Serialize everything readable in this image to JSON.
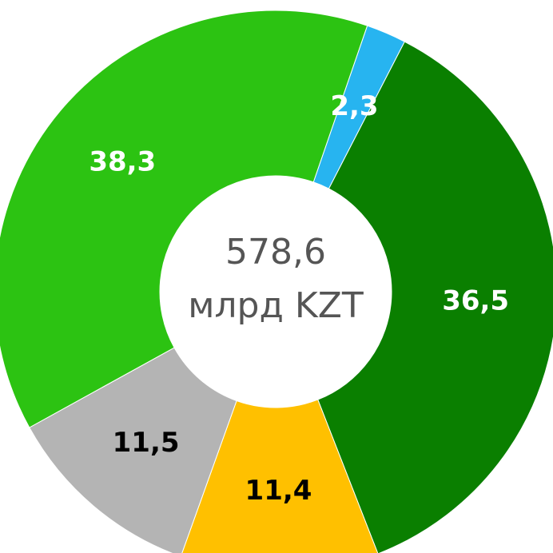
{
  "chart_data": {
    "type": "donut",
    "categories": [
      null,
      null,
      null,
      null,
      null
    ],
    "values": [
      2.3,
      36.5,
      11.4,
      11.5,
      38.3
    ],
    "value_labels": [
      "2,3",
      "36,5",
      "11,4",
      "11,5",
      "38,3"
    ],
    "colors": [
      "#27b4f0",
      "#0a7f00",
      "#ffc000",
      "#b4b4b4",
      "#2cc312"
    ],
    "label_colors": [
      "#ffffff",
      "#ffffff",
      "#000000",
      "#000000",
      "#ffffff"
    ],
    "center_text": [
      "578,6",
      "млрд KZT"
    ]
  }
}
